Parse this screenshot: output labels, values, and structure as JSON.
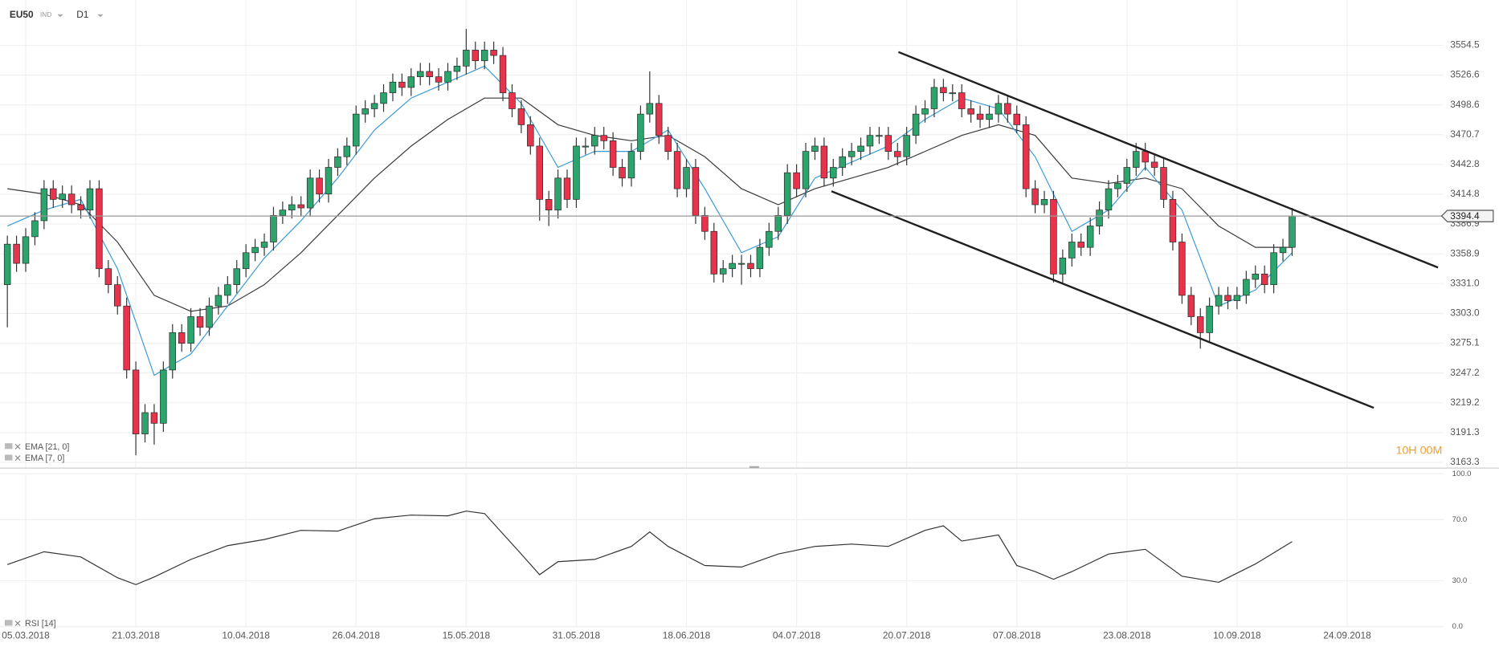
{
  "header": {
    "symbol": "EU50",
    "market": "IND",
    "timeframe": "D1"
  },
  "chart_data": [
    {
      "type": "candlestick",
      "xlim": [
        -0.8,
        156.5
      ],
      "ylim": [
        3158,
        3597
      ],
      "yticks": [
        3554.5,
        3526.6,
        3498.6,
        3470.7,
        3442.8,
        3414.8,
        3386.9,
        3358.9,
        {
          "value": 3331,
          "label": "3331.0"
        },
        {
          "value": 3303,
          "label": "3303.0"
        },
        3275.1,
        3247.2,
        3219.2,
        3191.3,
        3163.3
      ],
      "grid": true,
      "up_color": "#2ca56c",
      "down_color": "#e7334c",
      "open": [
        3330,
        3368,
        3350,
        3375,
        3390,
        3420,
        3410,
        3415,
        3405,
        3400,
        3420,
        3345,
        3330,
        3310,
        3250,
        3190,
        3210,
        3200,
        3250,
        3285,
        3275,
        3300,
        3290,
        3310,
        3320,
        3330,
        3345,
        3360,
        3365,
        3370,
        3395,
        3400,
        3405,
        3402,
        3430,
        3415,
        3440,
        3450,
        3460,
        3490,
        3495,
        3500,
        3510,
        3520,
        3515,
        3525,
        3530,
        3525,
        3520,
        3530,
        3535,
        3550,
        3540,
        3550,
        3545,
        3510,
        3495,
        3480,
        3460,
        3410,
        3400,
        3430,
        3410,
        3460,
        3460,
        3470,
        3465,
        3440,
        3430,
        3455,
        3490,
        3500,
        3470,
        3455,
        3420,
        3440,
        3395,
        3380,
        3340,
        3345,
        3350,
        3350,
        3345,
        3365,
        3380,
        3395,
        3435,
        3420,
        3455,
        3460,
        3430,
        3440,
        3450,
        3455,
        3460,
        3470,
        3470,
        3455,
        3450,
        3470,
        3490,
        3495,
        3515,
        3510,
        3510,
        3495,
        3490,
        3485,
        3490,
        3500,
        3490,
        3480,
        3420,
        3405,
        3410,
        3340,
        3355,
        3370,
        3365,
        3385,
        3400,
        3420,
        3425,
        3440,
        3455,
        3445,
        3440,
        3410,
        3370,
        3320,
        3300,
        3285,
        3310,
        3320,
        3315,
        3320,
        3335,
        3340,
        3330,
        3360,
        3365
      ],
      "high": [
        3376,
        3376,
        3383,
        3398,
        3428,
        3428,
        3423,
        3423,
        3413,
        3428,
        3428,
        3353,
        3338,
        3318,
        3258,
        3218,
        3218,
        3258,
        3293,
        3293,
        3308,
        3308,
        3318,
        3328,
        3338,
        3353,
        3368,
        3373,
        3378,
        3403,
        3408,
        3413,
        3413,
        3438,
        3438,
        3448,
        3458,
        3468,
        3498,
        3503,
        3508,
        3518,
        3528,
        3528,
        3533,
        3538,
        3538,
        3533,
        3538,
        3543,
        3570,
        3558,
        3558,
        3558,
        3553,
        3518,
        3503,
        3488,
        3468,
        3418,
        3438,
        3438,
        3468,
        3468,
        3478,
        3478,
        3473,
        3448,
        3463,
        3498,
        3530,
        3508,
        3478,
        3463,
        3448,
        3448,
        3403,
        3388,
        3353,
        3358,
        3358,
        3358,
        3373,
        3388,
        3403,
        3443,
        3443,
        3463,
        3468,
        3468,
        3448,
        3458,
        3463,
        3468,
        3478,
        3478,
        3478,
        3463,
        3478,
        3498,
        3503,
        3523,
        3523,
        3518,
        3518,
        3503,
        3498,
        3498,
        3508,
        3508,
        3498,
        3488,
        3428,
        3418,
        3418,
        3363,
        3378,
        3378,
        3393,
        3408,
        3428,
        3433,
        3448,
        3463,
        3463,
        3453,
        3448,
        3418,
        3378,
        3328,
        3308,
        3318,
        3328,
        3328,
        3328,
        3343,
        3348,
        3348,
        3368,
        3373,
        3402
      ],
      "low": [
        3290,
        3342,
        3342,
        3367,
        3382,
        3402,
        3402,
        3397,
        3392,
        3392,
        3337,
        3322,
        3302,
        3242,
        3170,
        3182,
        3180,
        3192,
        3242,
        3267,
        3267,
        3282,
        3282,
        3302,
        3312,
        3322,
        3337,
        3352,
        3357,
        3362,
        3387,
        3392,
        3394,
        3394,
        3407,
        3407,
        3432,
        3442,
        3452,
        3482,
        3487,
        3492,
        3502,
        3507,
        3507,
        3517,
        3517,
        3512,
        3512,
        3522,
        3527,
        3532,
        3532,
        3537,
        3502,
        3487,
        3472,
        3452,
        3390,
        3385,
        3392,
        3402,
        3402,
        3452,
        3452,
        3457,
        3432,
        3422,
        3422,
        3447,
        3482,
        3462,
        3447,
        3412,
        3412,
        3387,
        3372,
        3332,
        3332,
        3337,
        3330,
        3337,
        3337,
        3357,
        3372,
        3387,
        3412,
        3412,
        3447,
        3422,
        3422,
        3432,
        3442,
        3447,
        3452,
        3462,
        3447,
        3442,
        3442,
        3462,
        3482,
        3487,
        3502,
        3502,
        3487,
        3482,
        3477,
        3477,
        3482,
        3482,
        3472,
        3412,
        3397,
        3397,
        3332,
        3332,
        3347,
        3357,
        3357,
        3377,
        3392,
        3412,
        3417,
        3432,
        3437,
        3432,
        3402,
        3362,
        3312,
        3292,
        3270,
        3277,
        3302,
        3307,
        3307,
        3312,
        3327,
        3322,
        3322,
        3352,
        3357
      ],
      "close": [
        3368,
        3350,
        3375,
        3390,
        3420,
        3410,
        3415,
        3405,
        3400,
        3420,
        3345,
        3330,
        3310,
        3250,
        3190,
        3210,
        3200,
        3250,
        3285,
        3275,
        3300,
        3290,
        3310,
        3320,
        3330,
        3345,
        3360,
        3365,
        3370,
        3395,
        3400,
        3405,
        3402,
        3430,
        3415,
        3440,
        3450,
        3460,
        3490,
        3495,
        3500,
        3510,
        3520,
        3515,
        3525,
        3530,
        3525,
        3520,
        3530,
        3535,
        3550,
        3540,
        3550,
        3545,
        3510,
        3495,
        3480,
        3460,
        3410,
        3400,
        3430,
        3410,
        3460,
        3460,
        3470,
        3465,
        3440,
        3430,
        3455,
        3490,
        3500,
        3470,
        3455,
        3420,
        3440,
        3395,
        3380,
        3340,
        3345,
        3350,
        3350,
        3345,
        3365,
        3380,
        3395,
        3435,
        3420,
        3455,
        3460,
        3430,
        3440,
        3450,
        3455,
        3460,
        3470,
        3470,
        3455,
        3450,
        3470,
        3490,
        3495,
        3515,
        3510,
        3510,
        3495,
        3490,
        3485,
        3490,
        3500,
        3490,
        3480,
        3420,
        3405,
        3410,
        3340,
        3355,
        3370,
        3365,
        3385,
        3400,
        3420,
        3425,
        3440,
        3455,
        3445,
        3440,
        3410,
        3370,
        3320,
        3300,
        3285,
        3310,
        3320,
        3315,
        3320,
        3335,
        3340,
        3330,
        3360,
        3365,
        3394.4
      ],
      "series": [
        {
          "name": "EMA [21, 0]",
          "color": "#3a3a3a",
          "x": [
            0,
            4,
            8,
            12,
            16,
            20,
            24,
            28,
            32,
            36,
            40,
            44,
            48,
            52,
            56,
            60,
            64,
            68,
            72,
            76,
            80,
            84,
            88,
            92,
            96,
            100,
            104,
            108,
            112,
            116,
            120,
            124,
            128,
            132,
            136,
            140
          ],
          "values": [
            3420,
            3415,
            3405,
            3370,
            3320,
            3305,
            3310,
            3330,
            3360,
            3395,
            3430,
            3460,
            3485,
            3505,
            3505,
            3480,
            3470,
            3465,
            3470,
            3450,
            3420,
            3405,
            3420,
            3430,
            3440,
            3455,
            3470,
            3480,
            3470,
            3430,
            3425,
            3430,
            3420,
            3385,
            3365,
            3365
          ]
        },
        {
          "name": "EMA [7, 0]",
          "color": "#3b9ad6",
          "x": [
            0,
            4,
            8,
            12,
            16,
            20,
            24,
            28,
            32,
            36,
            40,
            44,
            48,
            52,
            56,
            60,
            64,
            68,
            72,
            76,
            80,
            84,
            88,
            92,
            96,
            100,
            104,
            108,
            112,
            116,
            120,
            124,
            128,
            132,
            136,
            140
          ],
          "values": [
            3385,
            3400,
            3410,
            3345,
            3245,
            3265,
            3310,
            3355,
            3390,
            3430,
            3475,
            3505,
            3520,
            3535,
            3500,
            3440,
            3455,
            3455,
            3475,
            3420,
            3360,
            3375,
            3430,
            3445,
            3460,
            3485,
            3505,
            3495,
            3450,
            3380,
            3400,
            3440,
            3400,
            3310,
            3325,
            3360
          ]
        }
      ],
      "trendlines": [
        {
          "x": [
            97.1,
            155.9
          ],
          "y": [
            3548.2,
            3346.1
          ]
        },
        {
          "x": [
            89.8,
            148.9
          ],
          "y": [
            3417.6,
            3214.5
          ]
        }
      ],
      "last_price": 3394.4,
      "countdown": "10H 00M"
    },
    {
      "type": "line",
      "xlim": [
        -0.8,
        156.5
      ],
      "xticks": [
        {
          "value": 2,
          "label": "05.03.2018"
        },
        {
          "value": 14,
          "label": "21.03.2018"
        },
        {
          "value": 26,
          "label": "10.04.2018"
        },
        {
          "value": 38,
          "label": "26.04.2018"
        },
        {
          "value": 50,
          "label": "15.05.2018"
        },
        {
          "value": 62,
          "label": "31.05.2018"
        },
        {
          "value": 74,
          "label": "18.06.2018"
        },
        {
          "value": 86,
          "label": "04.07.2018"
        },
        {
          "value": 98,
          "label": "20.07.2018"
        },
        {
          "value": 110,
          "label": "07.08.2018"
        },
        {
          "value": 122,
          "label": "23.08.2018"
        },
        {
          "value": 134,
          "label": "10.09.2018"
        },
        {
          "value": 146,
          "label": "24.09.2018"
        }
      ],
      "ylim": [
        0,
        100
      ],
      "yticks": [
        {
          "value": 100,
          "label": "100.0"
        },
        {
          "value": 70,
          "label": "70.0"
        },
        {
          "value": 30,
          "label": "30.0"
        },
        {
          "value": 0,
          "label": "0.0"
        }
      ],
      "grid": true,
      "series": [
        {
          "name": "RSI [14]",
          "color": "#333333",
          "x": [
            0,
            4,
            8,
            12,
            14,
            16,
            20,
            24,
            28,
            32,
            36,
            40,
            44,
            48,
            50,
            52,
            56,
            58,
            60,
            64,
            68,
            70,
            72,
            76,
            80,
            84,
            88,
            92,
            96,
            100,
            102,
            104,
            108,
            110,
            112,
            114,
            116,
            120,
            124,
            128,
            132,
            136,
            140
          ],
          "values": [
            40.6,
            49,
            45.6,
            32,
            27.5,
            32.5,
            44,
            53,
            57,
            63,
            62.5,
            70.6,
            73,
            72.5,
            75.6,
            74,
            47.5,
            34,
            42.5,
            44,
            52.5,
            62,
            52.5,
            40,
            39,
            47.5,
            52.5,
            54,
            52.5,
            63,
            66,
            56,
            60,
            40,
            36,
            31,
            36,
            47.5,
            50.6,
            33,
            29,
            41,
            55.6
          ]
        }
      ]
    }
  ]
}
